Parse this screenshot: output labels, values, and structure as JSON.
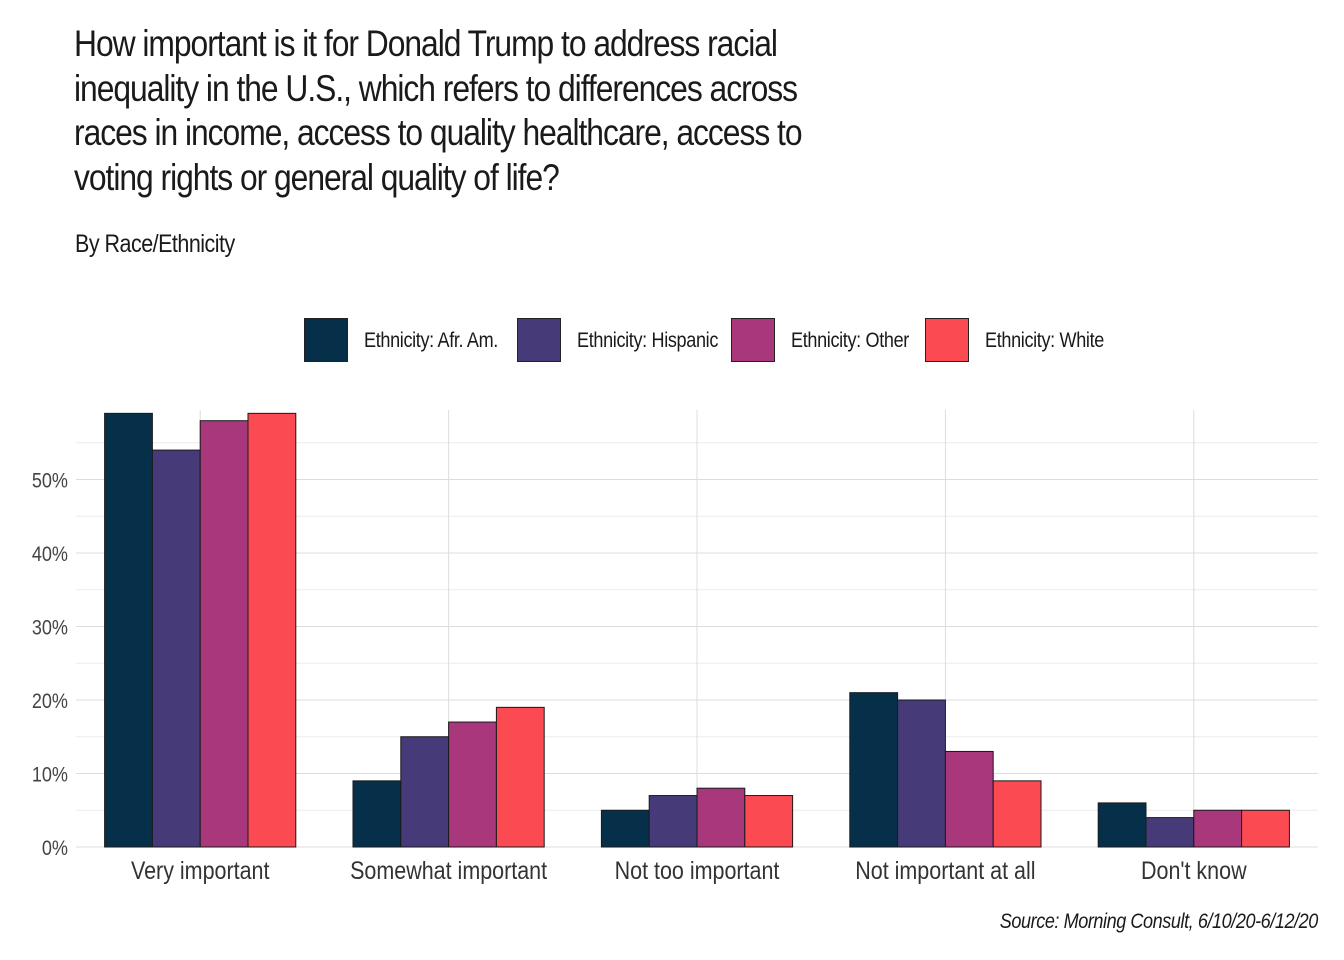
{
  "title": "How important is it for Donald Trump to address racial\ninequality in the U.S., which refers to differences across\nraces in income, access to quality healthcare, access to\nvoting rights or general quality of life?",
  "subtitle": "By Race/Ethnicity",
  "source": "Source: Morning Consult, 6/10/20-6/12/20",
  "chart_data": {
    "type": "bar",
    "categories": [
      "Very important",
      "Somewhat important",
      "Not too important",
      "Not important at all",
      "Don't know"
    ],
    "series": [
      {
        "name": "Ethnicity: Afr. Am.",
        "color": "#06304a",
        "values": [
          59,
          9,
          5,
          21,
          6
        ]
      },
      {
        "name": "Ethnicity: Hispanic",
        "color": "#463b78",
        "values": [
          54,
          15,
          7,
          20,
          4
        ]
      },
      {
        "name": "Ethnicity: Other",
        "color": "#a8377b",
        "values": [
          58,
          17,
          8,
          13,
          5
        ]
      },
      {
        "name": "Ethnicity: White",
        "color": "#fc4a53",
        "values": [
          59,
          19,
          7,
          9,
          5
        ]
      }
    ],
    "yticks": [
      "0%",
      "10%",
      "20%",
      "30%",
      "40%",
      "50%"
    ],
    "ylim": [
      0,
      59.5
    ],
    "grid": true,
    "legend_position": "top"
  }
}
